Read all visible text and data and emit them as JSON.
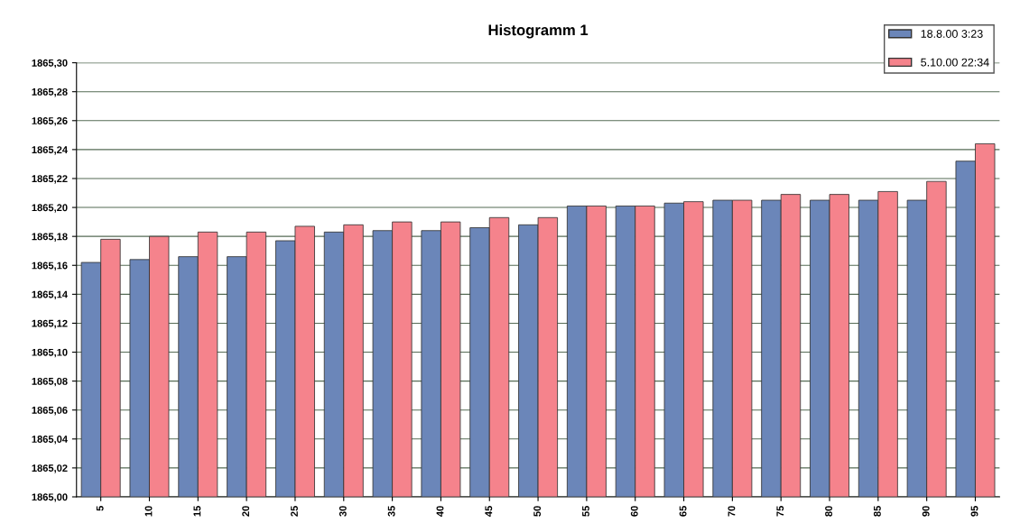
{
  "chart_data": {
    "type": "bar",
    "title": "Histogramm 1",
    "categories": [
      "5",
      "10",
      "15",
      "20",
      "25",
      "30",
      "35",
      "40",
      "45",
      "50",
      "55",
      "60",
      "65",
      "70",
      "75",
      "80",
      "85",
      "90",
      "95"
    ],
    "series": [
      {
        "name": "18.8.00 3:23",
        "color": "#6b86b9",
        "values": [
          1865.162,
          1865.164,
          1865.166,
          1865.166,
          1865.177,
          1865.183,
          1865.184,
          1865.184,
          1865.186,
          1865.188,
          1865.201,
          1865.201,
          1865.203,
          1865.205,
          1865.205,
          1865.205,
          1865.205,
          1865.205,
          1865.232
        ]
      },
      {
        "name": "5.10.00 22:34",
        "color": "#f5838c",
        "values": [
          1865.178,
          1865.18,
          1865.183,
          1865.183,
          1865.187,
          1865.188,
          1865.19,
          1865.19,
          1865.193,
          1865.193,
          1865.201,
          1865.201,
          1865.204,
          1865.205,
          1865.209,
          1865.209,
          1865.211,
          1865.218,
          1865.244
        ]
      }
    ],
    "ylim": [
      1865.0,
      1865.3
    ],
    "yticks": [
      {
        "value": 1865.0,
        "label": "1865,00"
      },
      {
        "value": 1865.02,
        "label": "1865,02"
      },
      {
        "value": 1865.04,
        "label": "1865,04"
      },
      {
        "value": 1865.06,
        "label": "1865,06"
      },
      {
        "value": 1865.08,
        "label": "1865,08"
      },
      {
        "value": 1865.1,
        "label": "1865,10"
      },
      {
        "value": 1865.12,
        "label": "1865,12"
      },
      {
        "value": 1865.14,
        "label": "1865,14"
      },
      {
        "value": 1865.16,
        "label": "1865,16"
      },
      {
        "value": 1865.18,
        "label": "1865,18"
      },
      {
        "value": 1865.2,
        "label": "1865,20"
      },
      {
        "value": 1865.22,
        "label": "1865,22"
      },
      {
        "value": 1865.24,
        "label": "1865,24"
      },
      {
        "value": 1865.26,
        "label": "1865,26"
      },
      {
        "value": 1865.28,
        "label": "1865,28"
      },
      {
        "value": 1865.3,
        "label": "1865,30"
      }
    ],
    "grid": "y",
    "legend": "top right"
  }
}
